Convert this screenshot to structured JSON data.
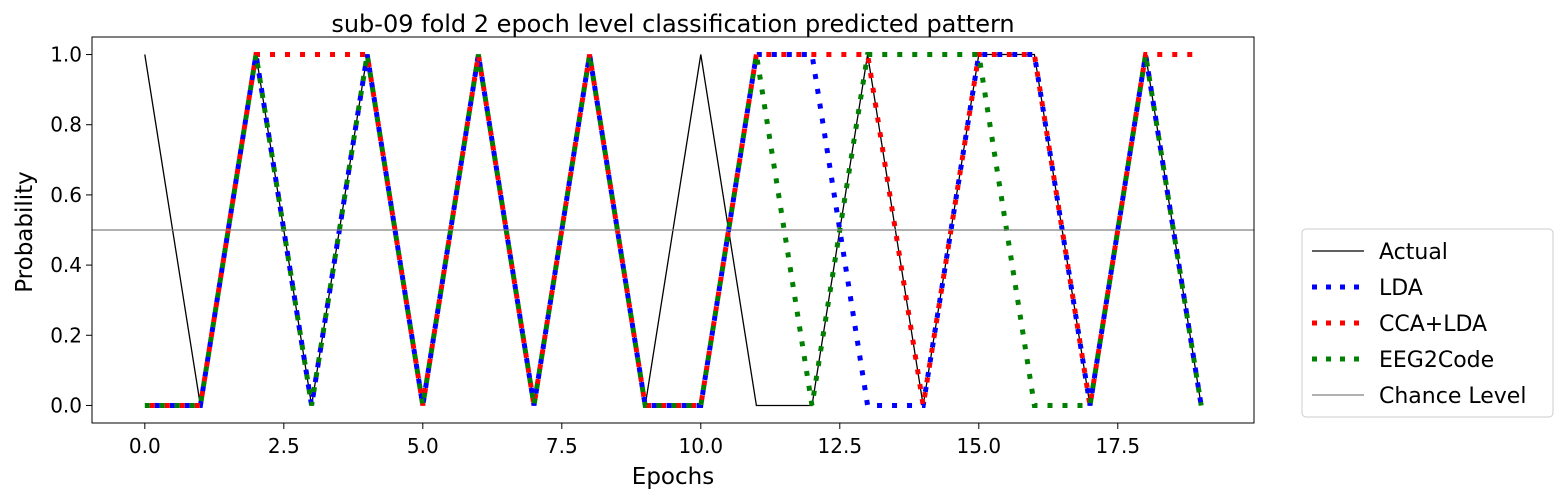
{
  "chart_data": {
    "type": "line",
    "title": "sub-09 fold 2 epoch level classification predicted pattern",
    "xlabel": "Epochs",
    "ylabel": "Probability",
    "xlim": [
      -0.95,
      19.95
    ],
    "ylim": [
      -0.05,
      1.05
    ],
    "xticks": [
      0.0,
      2.5,
      5.0,
      7.5,
      10.0,
      12.5,
      15.0,
      17.5
    ],
    "xtick_labels": [
      "0.0",
      "2.5",
      "5.0",
      "7.5",
      "10.0",
      "12.5",
      "15.0",
      "17.5"
    ],
    "yticks": [
      0.0,
      0.2,
      0.4,
      0.6,
      0.8,
      1.0
    ],
    "ytick_labels": [
      "0.0",
      "0.2",
      "0.4",
      "0.6",
      "0.8",
      "1.0"
    ],
    "grid": false,
    "legend_position": "outside-right-bottom",
    "series": [
      {
        "name": "Actual",
        "color": "#000000",
        "style": "solid",
        "x": [
          0,
          1,
          2,
          3,
          4,
          5,
          6,
          7,
          8,
          9,
          10,
          11,
          12,
          13,
          14,
          15,
          16,
          17,
          18,
          19
        ],
        "y": [
          1,
          0,
          1,
          0,
          1,
          0,
          1,
          0,
          1,
          0,
          1,
          0,
          0,
          1,
          0,
          1,
          1,
          0,
          1,
          0
        ]
      },
      {
        "name": "LDA",
        "color": "#0000ff",
        "style": "dotted",
        "x": [
          0,
          1,
          2,
          3,
          4,
          5,
          6,
          7,
          8,
          9,
          10,
          11,
          12,
          13,
          14,
          15,
          16,
          17,
          18,
          19
        ],
        "y": [
          0,
          0,
          1,
          0,
          1,
          0,
          1,
          0,
          1,
          0,
          0,
          1,
          1,
          0,
          0,
          1,
          1,
          0,
          1,
          0
        ]
      },
      {
        "name": "CCA+LDA",
        "color": "#ff0000",
        "style": "dotted",
        "x": [
          0,
          1,
          2,
          3,
          4,
          5,
          6,
          7,
          8,
          9,
          10,
          11,
          12,
          13,
          14,
          15,
          16,
          17,
          18,
          19
        ],
        "y": [
          0,
          0,
          1,
          1,
          1,
          0,
          1,
          0,
          1,
          0,
          0,
          1,
          1,
          1,
          0,
          1,
          1,
          0,
          1,
          1
        ]
      },
      {
        "name": "EEG2Code",
        "color": "#008000",
        "style": "dotted",
        "x": [
          0,
          1,
          2,
          3,
          4,
          5,
          6,
          7,
          8,
          9,
          10,
          11,
          12,
          13,
          14,
          15,
          16,
          17,
          18,
          19
        ],
        "y": [
          0,
          0,
          1,
          0,
          1,
          0,
          1,
          0,
          1,
          0,
          0,
          1,
          0,
          1,
          1,
          1,
          0,
          0,
          1,
          0
        ]
      },
      {
        "name": "Chance Level",
        "color": "#808080",
        "style": "hline",
        "y": 0.5
      }
    ]
  }
}
